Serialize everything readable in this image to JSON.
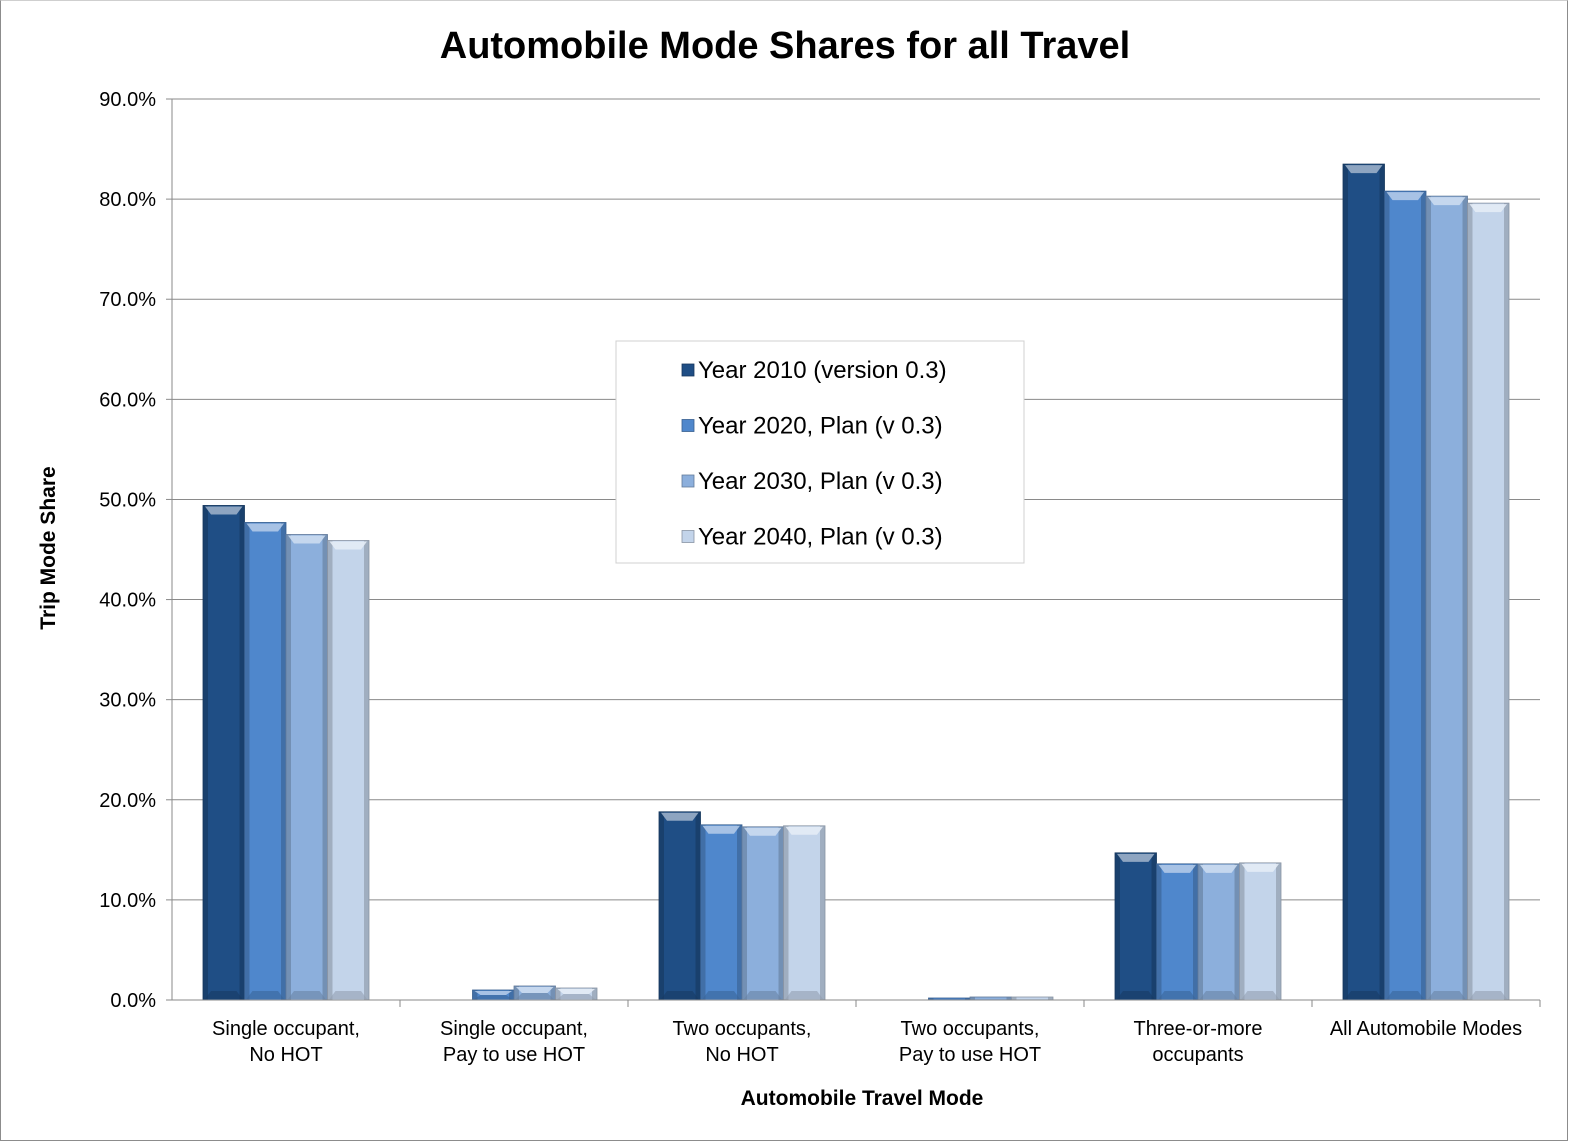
{
  "chart_data": {
    "type": "bar",
    "title": "Automobile Mode Shares for all Travel",
    "xlabel": "Automobile Travel Mode",
    "ylabel": "Trip Mode Share",
    "ylim": [
      0,
      90
    ],
    "yticks": [
      "0.0%",
      "10.0%",
      "20.0%",
      "30.0%",
      "40.0%",
      "50.0%",
      "60.0%",
      "70.0%",
      "80.0%",
      "90.0%"
    ],
    "grid": true,
    "legend_position": "center",
    "categories": [
      [
        "Single occupant,",
        "No HOT"
      ],
      [
        "Single occupant,",
        "Pay to use HOT"
      ],
      [
        "Two occupants,",
        "No HOT"
      ],
      [
        "Two occupants,",
        "Pay to use HOT"
      ],
      [
        "Three-or-more",
        "occupants"
      ],
      [
        "All Automobile Modes"
      ]
    ],
    "series": [
      {
        "name": "Year 2010 (version 0.3)",
        "color": "#1f4e85",
        "values": [
          49.4,
          0,
          18.8,
          0,
          14.7,
          83.5
        ]
      },
      {
        "name": "Year 2020, Plan (v 0.3)",
        "color": "#4f87cc",
        "values": [
          47.7,
          1.0,
          17.5,
          0.2,
          13.6,
          80.8
        ]
      },
      {
        "name": "Year 2030, Plan (v 0.3)",
        "color": "#8cafdc",
        "values": [
          46.5,
          1.4,
          17.3,
          0.3,
          13.6,
          80.3
        ]
      },
      {
        "name": "Year 2040, Plan (v 0.3)",
        "color": "#c3d4ea",
        "values": [
          45.9,
          1.2,
          17.4,
          0.3,
          13.7,
          79.6
        ]
      }
    ]
  }
}
